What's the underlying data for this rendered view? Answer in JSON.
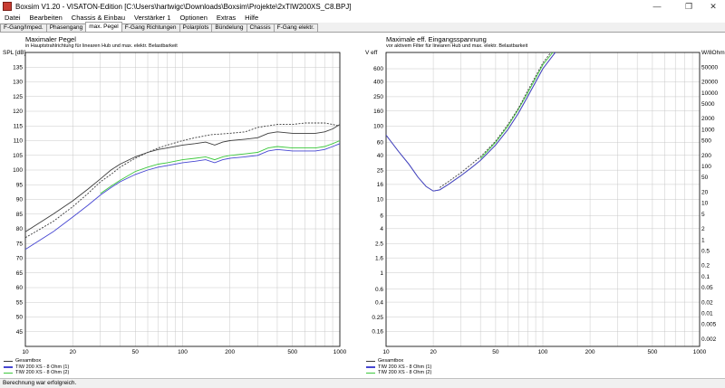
{
  "window": {
    "title": "Boxsim V1.20 - VISATON-Edition [C:\\Users\\hartwigc\\Downloads\\Boxsim\\Projekte\\2xTIW200XS_C8.BPJ]",
    "minimize": "—",
    "maximize": "❐",
    "close": "✕"
  },
  "menu": [
    "Datei",
    "Bearbeiten",
    "Chassis & Einbau",
    "Verstärker 1",
    "Optionen",
    "Extras",
    "Hilfe"
  ],
  "tabs": [
    "F-Gang/Imped.",
    "Phasengang",
    "max. Pegel",
    "F-Gang Richtungen",
    "Polarplots",
    "Bündelung",
    "Chassis",
    "F-Gang elektr."
  ],
  "active_tab": 2,
  "colors": {
    "gesamt": "#3c3c3c",
    "chassis1": "#4646d2",
    "chassis2": "#3cc83c",
    "grid": "#c8c8c8"
  },
  "status": "Berechnung war erfolgreich.",
  "chart_data": [
    {
      "type": "line",
      "title": "Maximaler Pegel",
      "subtitle": "in Hauptstrahlrichtung für linearen Hub und max. elektr. Belastbarkeit",
      "ylabel": "SPL [dB]",
      "xscale": "log",
      "xlim": [
        10,
        1000
      ],
      "ylim": [
        40,
        140
      ],
      "xticks": [
        10,
        20,
        50,
        100,
        200,
        500,
        1000
      ],
      "yticks": [
        45,
        50,
        55,
        60,
        65,
        70,
        75,
        80,
        85,
        90,
        95,
        100,
        105,
        110,
        115,
        120,
        125,
        130,
        135
      ],
      "legend": [
        "Gesamtbox",
        "TIW 200 XS - 8 Ohm (1)",
        "TIW 200 XS - 8 Ohm (2)"
      ],
      "legend_position": "bottom-left",
      "series": [
        {
          "name": "Gesamtbox",
          "x": [
            10,
            15,
            20,
            25,
            30,
            35,
            40,
            50,
            60,
            70,
            80,
            100,
            120,
            140,
            160,
            180,
            200,
            250,
            300,
            350,
            400,
            500,
            600,
            700,
            800,
            900,
            1000
          ],
          "y": [
            79,
            85,
            89.5,
            93.5,
            97,
            100,
            102,
            104.5,
            106,
            107,
            107.5,
            108.5,
            109,
            109.5,
            108.5,
            109.5,
            110,
            110.5,
            111,
            112.5,
            113,
            112.5,
            112.5,
            112.5,
            113,
            114,
            115.5
          ]
        },
        {
          "name": "TIW 200 XS - 8 Ohm (1)",
          "x": [
            10,
            15,
            20,
            25,
            30,
            35,
            40,
            50,
            60,
            70,
            80,
            100,
            120,
            140,
            160,
            180,
            200,
            250,
            300,
            350,
            400,
            500,
            600,
            700,
            800,
            900,
            1000
          ],
          "y": [
            73,
            79,
            84,
            88,
            91.5,
            94,
            96,
            98.5,
            100,
            101,
            101.5,
            102.5,
            103,
            103.5,
            102.5,
            103.5,
            104,
            104.5,
            105,
            106.5,
            107,
            106.5,
            106.5,
            106.5,
            107,
            108,
            109
          ]
        },
        {
          "name": "TIW 200 XS - 8 Ohm (2)",
          "x": [
            30,
            35,
            40,
            50,
            60,
            70,
            80,
            100,
            120,
            140,
            160,
            180,
            200,
            250,
            300,
            350,
            400,
            500,
            600,
            700,
            800,
            900,
            1000
          ],
          "y": [
            92,
            94.5,
            96.5,
            99.5,
            101,
            102,
            102.5,
            103.5,
            104,
            104.5,
            103.5,
            104.5,
            105,
            105.5,
            106,
            107.5,
            108,
            107.5,
            107.5,
            107.5,
            108,
            109,
            110
          ]
        },
        {
          "name": "",
          "x": [
            10,
            15,
            20,
            25,
            30,
            35,
            40,
            50,
            60,
            70,
            80,
            100,
            120,
            150,
            200,
            250,
            300,
            400,
            500,
            600,
            700,
            800,
            900,
            1000
          ],
          "y": [
            77,
            82.5,
            87.5,
            92,
            96,
            98.5,
            101,
            104,
            106,
            107.5,
            108.5,
            110,
            111,
            112,
            112.5,
            113,
            114.5,
            115.5,
            115.5,
            116,
            116,
            116,
            115.5,
            115
          ]
        }
      ]
    },
    {
      "type": "line",
      "title": "Maximale eff. Eingangsspannung",
      "subtitle": "vor aktivem Filter für linearen Hub und max. elektr. Belastbarkeit",
      "ylabel": "V eff",
      "y2label": "W/8Ohm",
      "xscale": "log",
      "yscale": "log",
      "xlim": [
        10,
        1000
      ],
      "ylim": [
        0.1,
        1000
      ],
      "xticks": [
        10,
        20,
        50,
        100,
        200,
        500,
        1000
      ],
      "yticks_left": [
        "600",
        "400",
        "250",
        "160",
        "100",
        "60",
        "40",
        "25",
        "16",
        "10",
        "6",
        "4",
        "2.5",
        "1.6",
        "1",
        "0.6",
        "0.4",
        "0.25",
        "0.16"
      ],
      "yticks_right": [
        "50000",
        "20000",
        "10000",
        "5000",
        "2000",
        "1000",
        "500",
        "200",
        "100",
        "50",
        "20",
        "10",
        "5",
        "2",
        "1",
        "0.5",
        "0.2",
        "0.1",
        "0.05",
        "0.02",
        "0.01",
        "0.005",
        "0.002"
      ],
      "legend": [
        "Gesamtbox",
        "TIW 200 XS - 8 Ohm (1)",
        "TIW 200 XS - 8 Ohm (2)"
      ],
      "legend_position": "bottom-left",
      "series": [
        {
          "name": "Gesamtbox",
          "x": [
            10,
            12,
            14,
            16,
            18,
            20,
            22,
            25,
            30,
            35,
            40,
            50,
            60,
            70,
            80,
            100,
            120,
            140,
            150
          ],
          "y": [
            75,
            45,
            30,
            20,
            15,
            13,
            13.5,
            16,
            21,
            27,
            34,
            55,
            90,
            150,
            250,
            600,
            1000,
            1600,
            1800
          ]
        },
        {
          "name": "TIW 200 XS - 8 Ohm (1)",
          "x": [
            10,
            12,
            14,
            16,
            18,
            20,
            22,
            25,
            30,
            35,
            40,
            50,
            60,
            70,
            80,
            100,
            120,
            140,
            150
          ],
          "y": [
            75,
            45,
            30,
            20,
            15,
            13,
            13.5,
            16,
            21,
            27,
            34,
            55,
            90,
            150,
            250,
            600,
            1000,
            1600,
            1800
          ]
        },
        {
          "name": "TIW 200 XS - 8 Ohm (2)",
          "x": [
            40,
            50,
            60,
            70,
            80,
            100,
            120,
            140
          ],
          "y": [
            36,
            60,
            100,
            170,
            280,
            680,
            1100,
            1800
          ]
        },
        {
          "name": "",
          "x": [
            22,
            25,
            30,
            35,
            40,
            50,
            60,
            70,
            80,
            100,
            120,
            140
          ],
          "y": [
            14.5,
            17.5,
            23,
            30,
            38,
            62,
            105,
            175,
            300,
            720,
            1200,
            1900
          ]
        }
      ]
    }
  ]
}
